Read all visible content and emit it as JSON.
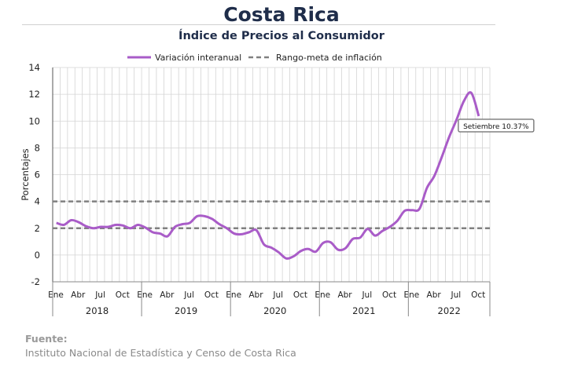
{
  "title": "Costa Rica",
  "subtitle": "Índice de Precios al Consumidor",
  "source": {
    "label": "Fuente:",
    "text": "Instituto Nacional de Estadística y Censo de Costa Rica"
  },
  "chart_data": {
    "type": "line",
    "ylabel": "Porcentajes",
    "ylim": [
      -2,
      14
    ],
    "yticks": [
      -2,
      0,
      2,
      4,
      6,
      8,
      10,
      12,
      14
    ],
    "grid": true,
    "legend_position": "top",
    "month_tick_labels": [
      "Ene",
      "Abr",
      "Jul",
      "Oct"
    ],
    "year_labels": [
      "2018",
      "2019",
      "2020",
      "2021",
      "2022"
    ],
    "x_start": "2018-01",
    "x_end": "2022-09",
    "series": [
      {
        "name": "Variación interanual",
        "color": "#a95cc8",
        "style": "solid",
        "values": [
          2.4,
          2.25,
          2.6,
          2.45,
          2.15,
          2.0,
          2.1,
          2.1,
          2.25,
          2.2,
          2.0,
          2.25,
          2.05,
          1.7,
          1.6,
          1.4,
          2.1,
          2.3,
          2.4,
          2.9,
          2.9,
          2.7,
          2.3,
          2.0,
          1.6,
          1.55,
          1.7,
          1.85,
          0.8,
          0.55,
          0.2,
          -0.25,
          -0.1,
          0.3,
          0.45,
          0.25,
          0.9,
          0.95,
          0.4,
          0.5,
          1.2,
          1.3,
          1.95,
          1.45,
          1.8,
          2.1,
          2.55,
          3.3,
          3.35,
          3.45,
          5.0,
          5.9,
          7.3,
          8.8,
          10.1,
          11.5,
          12.1,
          10.37
        ]
      },
      {
        "name": "Rango-meta de inflación",
        "color": "#808080",
        "style": "dashed",
        "band": [
          2,
          4
        ]
      }
    ],
    "annotation": "Setiembre 10.37%"
  }
}
